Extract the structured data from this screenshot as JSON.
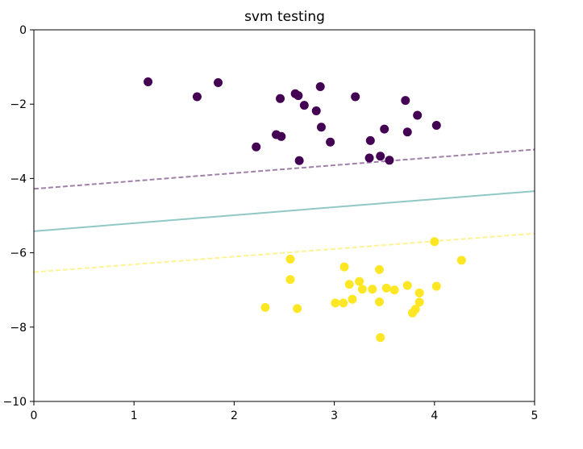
{
  "chart_data": {
    "type": "scatter",
    "title": "svm testing",
    "xlabel": "",
    "ylabel": "",
    "xlim": [
      0,
      5
    ],
    "ylim": [
      -10,
      0
    ],
    "xticks": [
      "0",
      "1",
      "2",
      "3",
      "4",
      "5"
    ],
    "yticks": [
      "0",
      "−2",
      "−4",
      "−6",
      "−8",
      "−10"
    ],
    "grid": false,
    "series": [
      {
        "color": "#440154",
        "points": [
          [
            1.14,
            -1.4
          ],
          [
            1.63,
            -1.8
          ],
          [
            1.84,
            -1.42
          ],
          [
            2.22,
            -3.15
          ],
          [
            2.42,
            -2.82
          ],
          [
            2.46,
            -1.85
          ],
          [
            2.47,
            -2.87
          ],
          [
            2.61,
            -1.72
          ],
          [
            2.64,
            -1.77
          ],
          [
            2.65,
            -3.52
          ],
          [
            2.7,
            -2.03
          ],
          [
            2.82,
            -2.18
          ],
          [
            2.86,
            -1.53
          ],
          [
            2.87,
            -2.62
          ],
          [
            2.96,
            -3.02
          ],
          [
            3.21,
            -1.8
          ],
          [
            3.35,
            -3.45
          ],
          [
            3.36,
            -2.98
          ],
          [
            3.46,
            -3.4
          ],
          [
            3.5,
            -2.67
          ],
          [
            3.55,
            -3.51
          ],
          [
            3.71,
            -1.9
          ],
          [
            3.73,
            -2.75
          ],
          [
            3.83,
            -2.3
          ],
          [
            4.02,
            -2.57
          ]
        ]
      },
      {
        "color": "#fde725",
        "points": [
          [
            2.31,
            -7.47
          ],
          [
            2.56,
            -6.72
          ],
          [
            2.56,
            -6.17
          ],
          [
            2.63,
            -7.5
          ],
          [
            3.01,
            -7.35
          ],
          [
            3.09,
            -7.35
          ],
          [
            3.1,
            -6.38
          ],
          [
            3.15,
            -6.85
          ],
          [
            3.18,
            -7.25
          ],
          [
            3.25,
            -6.77
          ],
          [
            3.28,
            -6.98
          ],
          [
            3.38,
            -6.98
          ],
          [
            3.45,
            -6.45
          ],
          [
            3.45,
            -7.32
          ],
          [
            3.46,
            -8.28
          ],
          [
            3.52,
            -6.95
          ],
          [
            3.6,
            -7.0
          ],
          [
            3.73,
            -6.88
          ],
          [
            3.78,
            -7.62
          ],
          [
            3.81,
            -7.52
          ],
          [
            3.85,
            -7.33
          ],
          [
            3.85,
            -7.08
          ],
          [
            4.0,
            -5.7
          ],
          [
            4.02,
            -6.9
          ],
          [
            4.27,
            -6.2
          ]
        ]
      }
    ],
    "lines": [
      {
        "style": "dashed",
        "color": "#440154",
        "alpha": 0.5,
        "y_at_xmin": -4.28,
        "y_at_xmax": -3.22
      },
      {
        "style": "solid",
        "color": "#21918c",
        "alpha": 0.5,
        "y_at_xmin": -5.42,
        "y_at_xmax": -4.34
      },
      {
        "style": "dashed",
        "color": "#fde725",
        "alpha": 0.5,
        "y_at_xmin": -6.52,
        "y_at_xmax": -5.48
      }
    ]
  }
}
